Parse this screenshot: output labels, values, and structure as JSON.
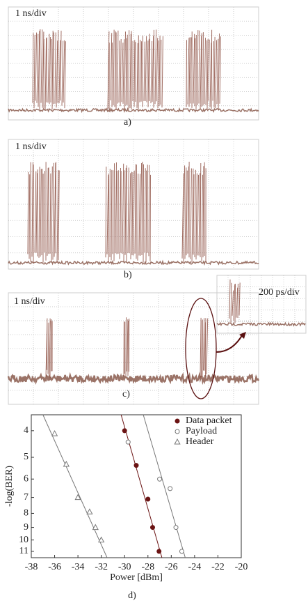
{
  "panels": [
    {
      "scale": "1 ns/div",
      "label": "a)"
    },
    {
      "scale": "1 ns/div",
      "label": "b)"
    },
    {
      "scale": "1 ns/div",
      "label": "c)"
    }
  ],
  "inset": {
    "scale": "200 ps/div"
  },
  "chart_data": {
    "type": "scatter",
    "label": "d)",
    "x_label": "Power [dBm]",
    "y_label": "-log(BER)",
    "xlim": [
      -38,
      -20
    ],
    "xticks": [
      -38,
      -36,
      -34,
      -32,
      -30,
      -28,
      -26,
      -24,
      -22,
      -20
    ],
    "ylim": [
      3.5,
      11.6
    ],
    "yticks": [
      4,
      5,
      6,
      7,
      8,
      9,
      10,
      11
    ],
    "ylog": true,
    "yreversed": true,
    "legend": "top-right",
    "series": [
      {
        "name": "Data packet",
        "color": "#6b1414",
        "marker": "filled-circle",
        "x": [
          -30,
          -29,
          -28,
          -27.6,
          -27.05
        ],
        "values": [
          4,
          5.35,
          7.1,
          9,
          11
        ],
        "fit_x": [
          -30.3,
          -26.8
        ],
        "fit_y": [
          3.5,
          11.6
        ]
      },
      {
        "name": "Payload",
        "color": "#777777",
        "marker": "open-circle",
        "x": [
          -29.7,
          -27,
          -26.1,
          -25.6,
          -25.1
        ],
        "values": [
          4.4,
          6,
          6.5,
          9,
          11
        ],
        "fit_x": [
          -28.4,
          -24.8
        ],
        "fit_y": [
          3.5,
          11.6
        ]
      },
      {
        "name": "Header",
        "color": "#777777",
        "marker": "open-triangle",
        "x": [
          -36,
          -35,
          -34,
          -33,
          -32.5,
          -32
        ],
        "values": [
          4.1,
          5.3,
          7,
          7.9,
          9,
          10
        ],
        "fit_x": [
          -37,
          -31.5
        ],
        "fit_y": [
          3.5,
          11.6
        ]
      }
    ]
  }
}
